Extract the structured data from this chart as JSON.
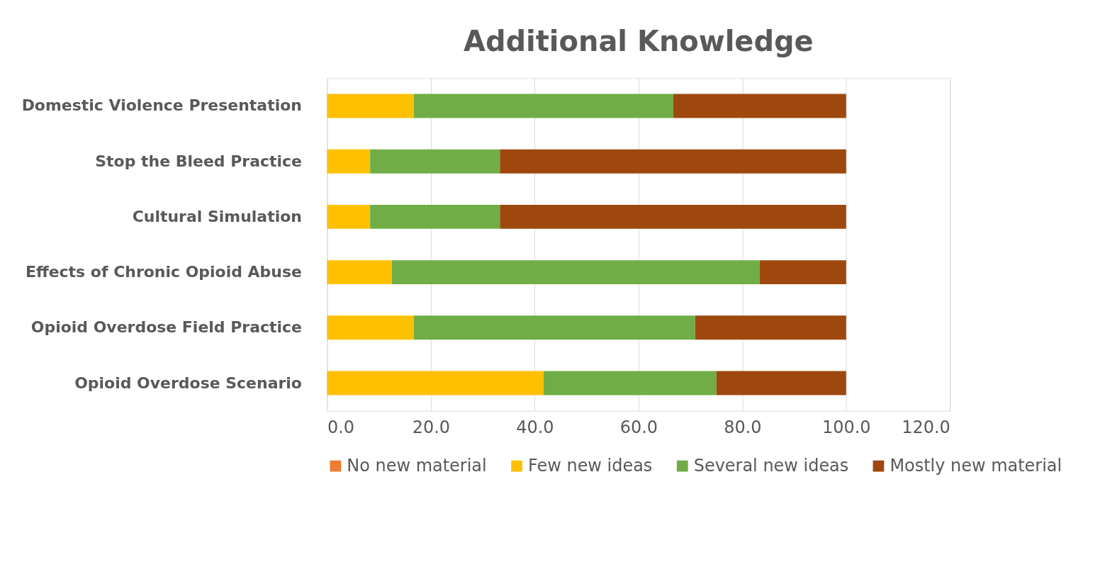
{
  "chart_data": {
    "type": "bar",
    "orientation": "horizontal",
    "stacked": true,
    "title": "Additional Knowledge",
    "categories": [
      "Domestic Violence Presentation",
      "Stop the Bleed Practice",
      "Cultural Simulation",
      "Effects of Chronic Opioid Abuse",
      "Opioid Overdose Field Practice",
      "Opioid Overdose Scenario"
    ],
    "series": [
      {
        "name": "No new material",
        "color": "#ed7d31",
        "values": [
          0,
          0,
          0,
          0,
          0,
          0
        ]
      },
      {
        "name": "Few new ideas",
        "color": "#ffc000",
        "values": [
          16.7,
          8.3,
          8.3,
          12.5,
          16.7,
          41.7
        ]
      },
      {
        "name": "Several new ideas",
        "color": "#70ad47",
        "values": [
          50.0,
          25.0,
          25.0,
          70.8,
          54.2,
          33.3
        ]
      },
      {
        "name": "Mostly new material",
        "color": "#9e480e",
        "values": [
          33.3,
          66.7,
          66.7,
          16.7,
          29.1,
          25.0
        ]
      }
    ],
    "xlim": [
      0,
      120
    ],
    "xticks": [
      {
        "value": 0,
        "label": "0.0"
      },
      {
        "value": 20,
        "label": "20.0"
      },
      {
        "value": 40,
        "label": "40.0"
      },
      {
        "value": 60,
        "label": "60.0"
      },
      {
        "value": 80,
        "label": "80.0"
      },
      {
        "value": 100,
        "label": "100.0"
      },
      {
        "value": 120,
        "label": "120.0"
      }
    ],
    "grid": "x",
    "legend": "bottom"
  }
}
